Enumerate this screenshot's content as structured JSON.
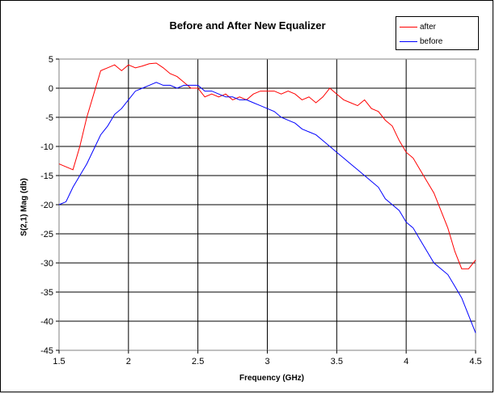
{
  "chart_data": {
    "type": "line",
    "title": "Before and After New Equalizer",
    "xlabel": "Frequency (GHz)",
    "ylabel": "S(2,1) Mag (db)",
    "xlim": [
      1.5,
      4.5
    ],
    "ylim": [
      -45,
      5
    ],
    "xticks": [
      "1.5",
      "2",
      "2.5",
      "3",
      "3.5",
      "4",
      "4.5"
    ],
    "xtick_values": [
      1.5,
      2,
      2.5,
      3,
      3.5,
      4,
      4.5
    ],
    "yticks": [
      "5",
      "0",
      "-5",
      "-10",
      "-15",
      "-20",
      "-25",
      "-30",
      "-35",
      "-40",
      "-45"
    ],
    "ytick_values": [
      5,
      0,
      -5,
      -10,
      -15,
      -20,
      -25,
      -30,
      -35,
      -40,
      -45
    ],
    "grid": true,
    "legend_position": "top-right",
    "series": [
      {
        "name": "after",
        "color": "#ff0000",
        "x": [
          1.5,
          1.55,
          1.6,
          1.65,
          1.7,
          1.75,
          1.8,
          1.85,
          1.9,
          1.95,
          2.0,
          2.05,
          2.1,
          2.15,
          2.2,
          2.25,
          2.3,
          2.35,
          2.4,
          2.45,
          2.5,
          2.55,
          2.6,
          2.65,
          2.7,
          2.75,
          2.8,
          2.85,
          2.9,
          2.95,
          3.0,
          3.05,
          3.1,
          3.15,
          3.2,
          3.25,
          3.3,
          3.35,
          3.4,
          3.45,
          3.5,
          3.55,
          3.6,
          3.65,
          3.7,
          3.75,
          3.8,
          3.85,
          3.9,
          3.95,
          4.0,
          4.05,
          4.1,
          4.15,
          4.2,
          4.25,
          4.3,
          4.35,
          4.4,
          4.45,
          4.5
        ],
        "y": [
          -13,
          -13.5,
          -14,
          -10,
          -5,
          -1,
          3,
          3.5,
          4,
          3,
          4,
          3.5,
          3.8,
          4.2,
          4.3,
          3.5,
          2.5,
          2,
          1,
          0,
          0,
          -1.5,
          -1,
          -1.5,
          -1,
          -2,
          -1.5,
          -2,
          -1,
          -0.5,
          -0.5,
          -0.5,
          -1,
          -0.5,
          -1,
          -2,
          -1.5,
          -2.5,
          -1.5,
          0,
          -1,
          -2,
          -2.5,
          -3,
          -2,
          -3.5,
          -4,
          -5.5,
          -6.5,
          -9,
          -11,
          -12,
          -14,
          -16,
          -18,
          -21,
          -24,
          -28,
          -31,
          -31,
          -29.5
        ]
      },
      {
        "name": "before",
        "color": "#0000ff",
        "x": [
          1.5,
          1.55,
          1.6,
          1.65,
          1.7,
          1.75,
          1.8,
          1.85,
          1.9,
          1.95,
          2.0,
          2.05,
          2.1,
          2.15,
          2.2,
          2.25,
          2.3,
          2.35,
          2.4,
          2.45,
          2.5,
          2.55,
          2.6,
          2.65,
          2.7,
          2.75,
          2.8,
          2.85,
          2.9,
          2.95,
          3.0,
          3.05,
          3.1,
          3.15,
          3.2,
          3.25,
          3.3,
          3.35,
          3.4,
          3.45,
          3.5,
          3.55,
          3.6,
          3.65,
          3.7,
          3.75,
          3.8,
          3.85,
          3.9,
          3.95,
          4.0,
          4.05,
          4.1,
          4.15,
          4.2,
          4.25,
          4.3,
          4.35,
          4.4,
          4.45,
          4.5
        ],
        "y": [
          -20,
          -19.5,
          -17,
          -15,
          -13,
          -10.5,
          -8,
          -6.5,
          -4.5,
          -3.5,
          -2,
          -0.5,
          0,
          0.5,
          1,
          0.5,
          0.5,
          0,
          0.5,
          0.5,
          0.5,
          -0.5,
          -0.5,
          -1,
          -1.5,
          -1.5,
          -2,
          -2,
          -2.5,
          -3,
          -3.5,
          -4,
          -5,
          -5.5,
          -6,
          -7,
          -7.5,
          -8,
          -9,
          -10,
          -11,
          -12,
          -13,
          -14,
          -15,
          -16,
          -17,
          -19,
          -20,
          -21,
          -23,
          -24,
          -26,
          -28,
          -30,
          -31,
          -32,
          -34,
          -36,
          -39,
          -42
        ]
      }
    ]
  }
}
